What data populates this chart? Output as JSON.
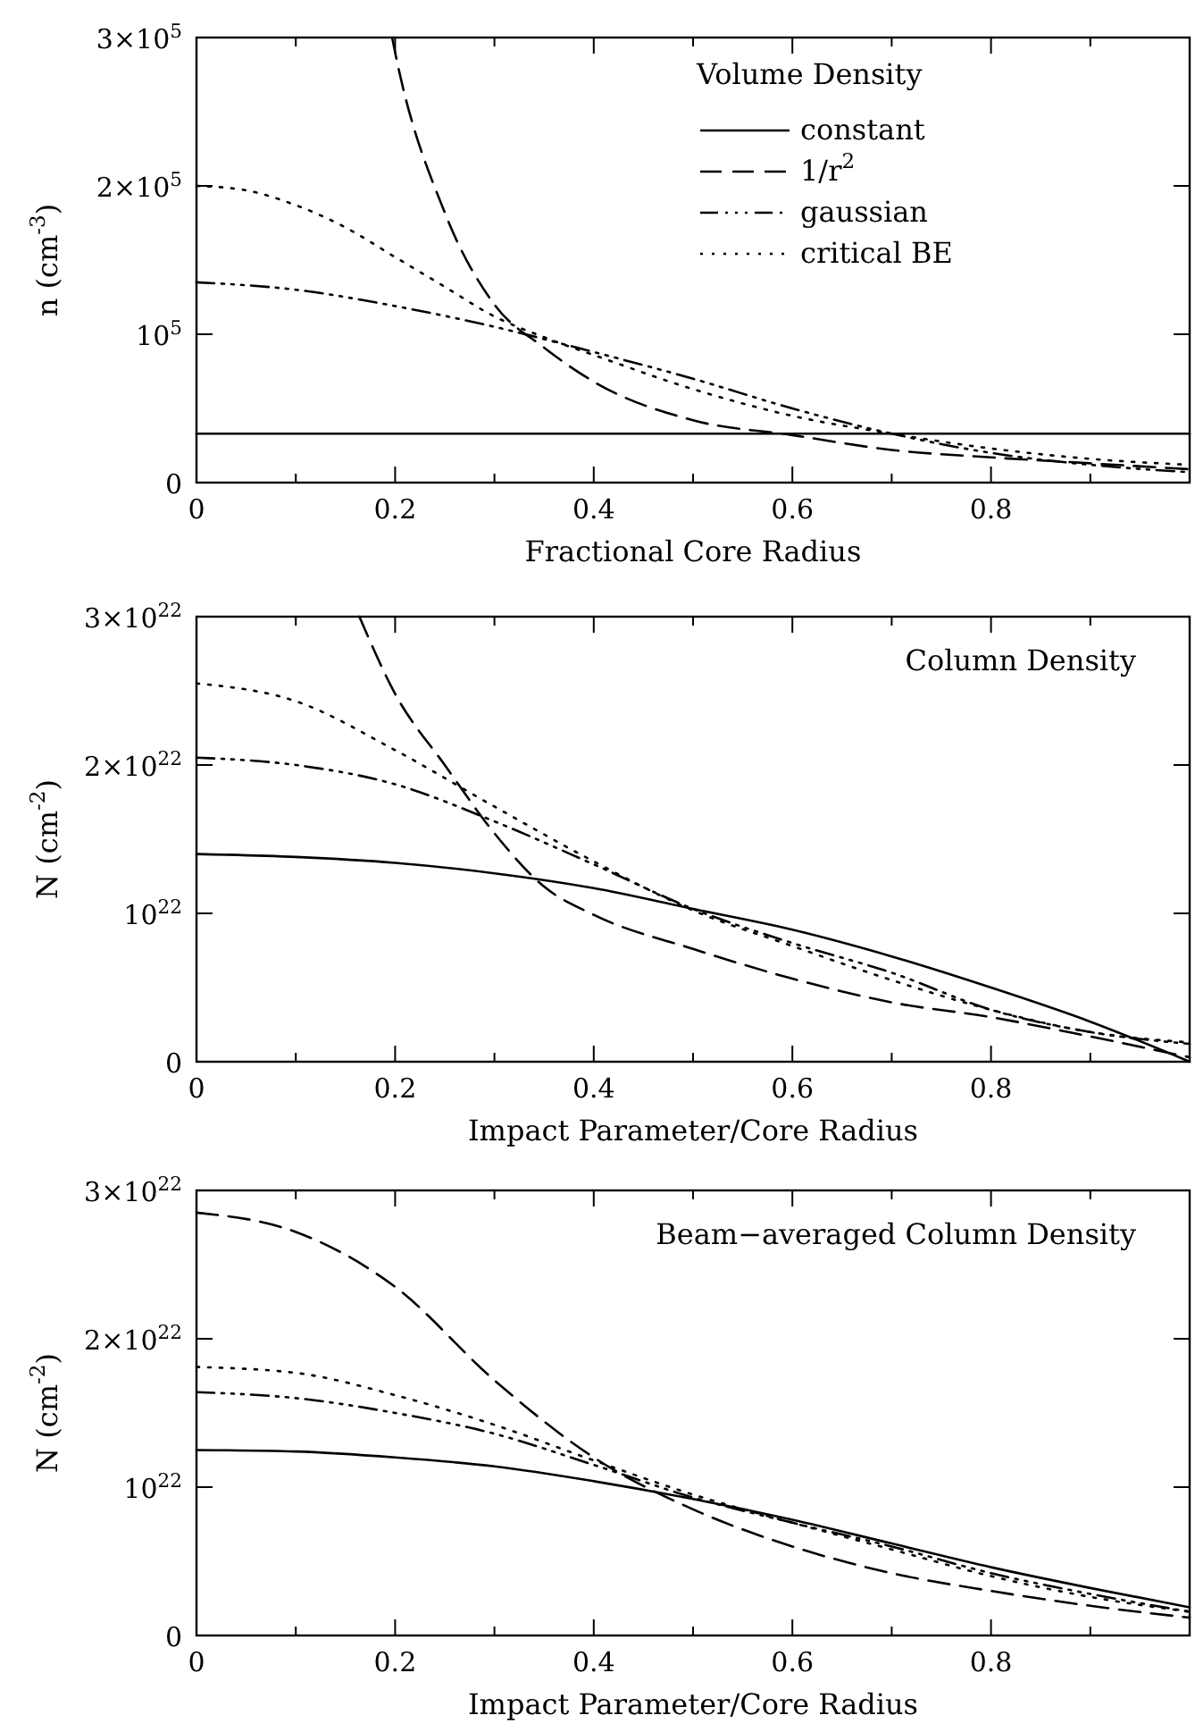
{
  "chart_data": [
    {
      "type": "line",
      "legend_title": "Volume Density",
      "xlabel": "Fractional Core Radius",
      "ylabel": "n (cm$^{-3}$)",
      "legend": "top right",
      "xlim": [
        0,
        1
      ],
      "ylim": [
        0,
        300000
      ],
      "xticks": [
        0,
        {
          "value": 0.1,
          "label": null
        },
        0.2,
        {
          "value": 0.3,
          "label": null
        },
        0.4,
        {
          "value": 0.5,
          "label": null
        },
        0.6,
        {
          "value": 0.7,
          "label": null
        },
        0.8,
        {
          "value": 0.9,
          "label": null
        }
      ],
      "yticks": [
        {
          "value": 0,
          "label": "0"
        },
        {
          "value": 100000,
          "label": "10$^{5}$"
        },
        {
          "value": 200000,
          "label": "2×10$^{5}$"
        },
        {
          "value": 300000,
          "label": "3×10$^{5}$"
        }
      ],
      "series": [
        {
          "name": "constant",
          "color": "#000000",
          "line_style": "solid",
          "x": [
            0,
            1
          ],
          "values": [
            33000,
            33000
          ]
        },
        {
          "name": "1/r$^{2}$",
          "color": "#000000",
          "line_style": "dashed",
          "x": [
            0.197,
            0.2,
            0.25,
            0.3,
            0.35,
            0.4,
            0.5,
            0.6,
            0.7,
            0.8,
            0.9,
            1
          ],
          "values": [
            300000,
            290000,
            182000,
            120000,
            91000,
            68000,
            42000,
            32000,
            22000,
            17000,
            13000,
            9000
          ]
        },
        {
          "name": "gaussian",
          "color": "#000000",
          "line_style": "dashdot",
          "x": [
            0,
            0.1,
            0.2,
            0.3,
            0.4,
            0.5,
            0.6,
            0.7,
            0.8,
            0.9,
            1
          ],
          "values": [
            135000,
            130000,
            119000,
            105000,
            88000,
            70000,
            50000,
            33000,
            20000,
            12000,
            7000
          ]
        },
        {
          "name": "critical BE",
          "color": "#000000",
          "line_style": "dotted",
          "x": [
            0,
            0.05,
            0.1,
            0.15,
            0.2,
            0.25,
            0.3,
            0.35,
            0.4,
            0.5,
            0.6,
            0.7,
            0.8,
            0.9,
            1
          ],
          "values": [
            200000,
            197000,
            187000,
            172000,
            152000,
            132000,
            112000,
            98000,
            86000,
            63000,
            45000,
            33000,
            23000,
            16000,
            12000
          ]
        }
      ]
    },
    {
      "type": "line",
      "title": "Column Density",
      "xlabel": "Impact Parameter/Core Radius",
      "ylabel": "N (cm$^{-2}$)",
      "xlim": [
        0,
        1
      ],
      "ylim": [
        0,
        3e+22
      ],
      "xticks": [
        0,
        {
          "value": 0.1,
          "label": null
        },
        0.2,
        {
          "value": 0.3,
          "label": null
        },
        0.4,
        {
          "value": 0.5,
          "label": null
        },
        0.6,
        {
          "value": 0.7,
          "label": null
        },
        0.8,
        {
          "value": 0.9,
          "label": null
        }
      ],
      "yticks": [
        {
          "value": 0,
          "label": "0"
        },
        {
          "value": 1e+22,
          "label": "10$^{22}$"
        },
        {
          "value": 2e+22,
          "label": "2×10$^{22}$"
        },
        {
          "value": 3e+22,
          "label": "3×10$^{22}$"
        }
      ],
      "series": [
        {
          "color": "#000000",
          "line_style": "solid",
          "x": [
            0,
            0.1,
            0.2,
            0.3,
            0.4,
            0.5,
            0.6,
            0.7,
            0.8,
            0.9,
            1
          ],
          "values": [
            1.4e+22,
            1.38e+22,
            1.34e+22,
            1.27e+22,
            1.17e+22,
            1.03e+22,
            8.9e+21,
            7.1e+21,
            5e+21,
            2.7e+21,
            0
          ]
        },
        {
          "color": "#000000",
          "line_style": "dashed",
          "x": [
            0.164,
            0.2,
            0.25,
            0.3,
            0.35,
            0.4,
            0.5,
            0.6,
            0.7,
            0.8,
            0.9,
            1
          ],
          "values": [
            3e+22,
            2.48e+22,
            2e+22,
            1.54e+22,
            1.18e+22,
            9.9e+21,
            7.6e+21,
            5.6e+21,
            4e+21,
            3e+21,
            1.7e+21,
            3e+20
          ]
        },
        {
          "color": "#000000",
          "line_style": "dashdot",
          "x": [
            0,
            0.1,
            0.2,
            0.3,
            0.4,
            0.5,
            0.6,
            0.7,
            0.8,
            0.9,
            1
          ],
          "values": [
            2.05e+22,
            2e+22,
            1.87e+22,
            1.62e+22,
            1.33e+22,
            1.03e+22,
            8e+21,
            6e+21,
            3.5e+21,
            2e+21,
            1.2e+21
          ]
        },
        {
          "color": "#000000",
          "line_style": "dotted",
          "x": [
            0,
            0.1,
            0.2,
            0.3,
            0.4,
            0.5,
            0.6,
            0.7,
            0.8,
            0.9,
            1
          ],
          "values": [
            2.55e+22,
            2.43e+22,
            2.1e+22,
            1.72e+22,
            1.35e+22,
            1.02e+22,
            7.8e+21,
            5.5e+21,
            3.5e+21,
            2e+21,
            1.3e+21
          ]
        }
      ]
    },
    {
      "type": "line",
      "title": "Beam−averaged Column Density",
      "xlabel": "Impact Parameter/Core Radius",
      "ylabel": "N (cm$^{-2}$)",
      "xlim": [
        0,
        1
      ],
      "ylim": [
        0,
        3e+22
      ],
      "xticks": [
        0,
        {
          "value": 0.1,
          "label": null
        },
        0.2,
        {
          "value": 0.3,
          "label": null
        },
        0.4,
        {
          "value": 0.5,
          "label": null
        },
        0.6,
        {
          "value": 0.7,
          "label": null
        },
        0.8,
        {
          "value": 0.9,
          "label": null
        }
      ],
      "yticks": [
        {
          "value": 0,
          "label": "0"
        },
        {
          "value": 1e+22,
          "label": "10$^{22}$"
        },
        {
          "value": 2e+22,
          "label": "2×10$^{22}$"
        },
        {
          "value": 3e+22,
          "label": "3×10$^{22}$"
        }
      ],
      "series": [
        {
          "color": "#000000",
          "line_style": "solid",
          "x": [
            0,
            0.1,
            0.2,
            0.3,
            0.4,
            0.5,
            0.6,
            0.7,
            0.8,
            0.9,
            1
          ],
          "values": [
            1.25e+22,
            1.24e+22,
            1.2e+22,
            1.14e+22,
            1.04e+22,
            9.2e+21,
            7.8e+21,
            6.2e+21,
            4.6e+21,
            3.2e+21,
            1.9e+21
          ]
        },
        {
          "color": "#000000",
          "line_style": "dashed",
          "x": [
            0,
            0.1,
            0.2,
            0.3,
            0.4,
            0.5,
            0.6,
            0.7,
            0.8,
            0.9,
            1
          ],
          "values": [
            2.85e+22,
            2.72e+22,
            2.35e+22,
            1.72e+22,
            1.2e+22,
            8.5e+21,
            6e+21,
            4.2e+21,
            3e+21,
            2e+21,
            1.2e+21
          ]
        },
        {
          "color": "#000000",
          "line_style": "dashdot",
          "x": [
            0,
            0.1,
            0.2,
            0.3,
            0.4,
            0.5,
            0.6,
            0.7,
            0.8,
            0.9,
            1
          ],
          "values": [
            1.64e+22,
            1.6e+22,
            1.5e+22,
            1.36e+22,
            1.15e+22,
            9.3e+21,
            7.6e+21,
            6e+21,
            4.2e+21,
            2.8e+21,
            1.6e+21
          ]
        },
        {
          "color": "#000000",
          "line_style": "dotted",
          "x": [
            0,
            0.1,
            0.2,
            0.3,
            0.4,
            0.5,
            0.6,
            0.7,
            0.8,
            0.9,
            1
          ],
          "values": [
            1.81e+22,
            1.77e+22,
            1.62e+22,
            1.42e+22,
            1.18e+22,
            9.5e+21,
            7.6e+21,
            5.8e+21,
            4e+21,
            2.6e+21,
            1.6e+21
          ]
        }
      ]
    }
  ]
}
